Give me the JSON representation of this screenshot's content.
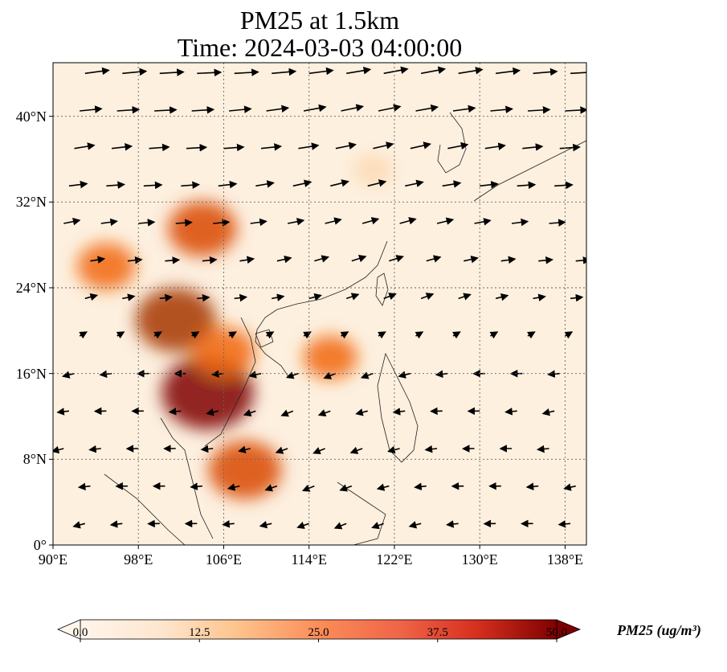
{
  "title_line1": "PM25 at 1.5km",
  "title_line2": "Time: 2024-03-03 04:00:00",
  "map": {
    "lon_range": [
      90,
      140
    ],
    "lat_range": [
      0,
      45
    ],
    "lat_ticks": [
      {
        "value": 40,
        "label": "40°N"
      },
      {
        "value": 32,
        "label": "32°N"
      },
      {
        "value": 24,
        "label": "24°N"
      },
      {
        "value": 16,
        "label": "16°N"
      },
      {
        "value": 8,
        "label": "8°N"
      },
      {
        "value": 0,
        "label": "0°"
      }
    ],
    "lon_ticks": [
      {
        "value": 90,
        "label": "90°E"
      },
      {
        "value": 98,
        "label": "98°E"
      },
      {
        "value": 106,
        "label": "106°E"
      },
      {
        "value": 114,
        "label": "114°E"
      },
      {
        "value": 122,
        "label": "122°E"
      },
      {
        "value": 130,
        "label": "130°E"
      },
      {
        "value": 138,
        "label": "138°E"
      }
    ],
    "gridlines": "dotted"
  },
  "colorbar": {
    "label": "PM25 (ug/m³)",
    "min": 0,
    "max": 50,
    "extend": "both",
    "colormap": [
      "#fff5eb",
      "#fdd9b4",
      "#fdae6b",
      "#f16913",
      "#d94801",
      "#a63603",
      "#7f0000"
    ],
    "ticks": [
      "0.0",
      "12.5",
      "25.0",
      "37.5",
      "50.0"
    ]
  },
  "field": {
    "hotspots": [
      {
        "lon": 104.5,
        "lat": 14.2,
        "value": 48
      },
      {
        "lon": 101.5,
        "lat": 21.0,
        "value": 40
      },
      {
        "lon": 104.0,
        "lat": 29.5,
        "value": 32
      },
      {
        "lon": 95.0,
        "lat": 26.0,
        "value": 25
      },
      {
        "lon": 108.0,
        "lat": 7.0,
        "value": 35
      },
      {
        "lon": 106.0,
        "lat": 18.0,
        "value": 28
      },
      {
        "lon": 116.0,
        "lat": 17.5,
        "value": 22
      },
      {
        "lon": 120.0,
        "lat": 35.0,
        "value": 12
      }
    ]
  },
  "wind_vectors_description": "westerly/south-westerly flow over China and Japan; north-easterly/easterly flow over South China Sea"
}
